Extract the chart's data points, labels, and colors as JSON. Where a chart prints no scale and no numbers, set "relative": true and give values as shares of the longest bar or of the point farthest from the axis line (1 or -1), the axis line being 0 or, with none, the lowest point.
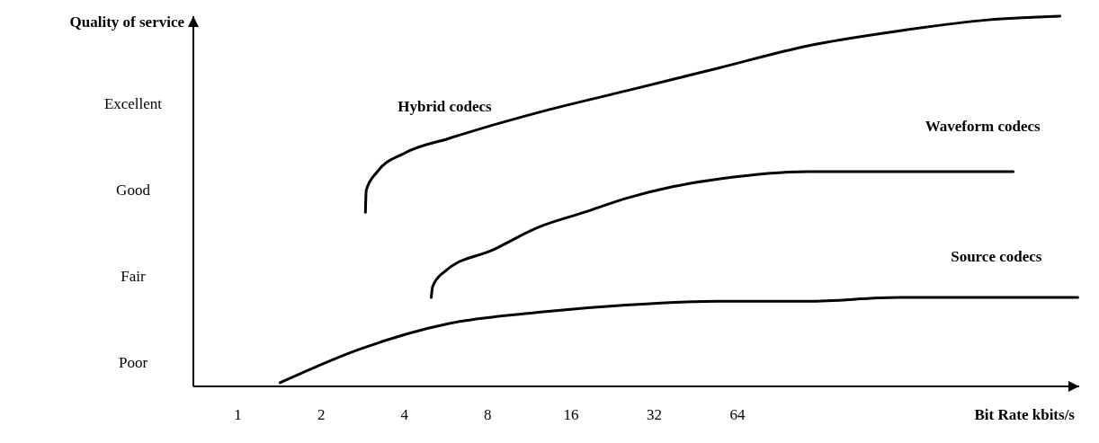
{
  "chart_data": {
    "type": "line",
    "xlabel": "Bit Rate kbits/s",
    "ylabel": "Quality of service",
    "log": "x",
    "relative": true,
    "xlim": [
      0.69,
      1100
    ],
    "xticks": [
      1,
      2,
      4,
      8,
      16,
      32,
      64
    ],
    "annotations": [
      "Poor",
      "Fair",
      "Good",
      "Excellent"
    ],
    "series": [
      {
        "name": "Hybrid codecs",
        "color": "#000000",
        "x": [
          2.89,
          2.91,
          3.19,
          4.0,
          5.8,
          12.2,
          25.9,
          54.6,
          115,
          244,
          515,
          937
        ],
        "values": [
          0.47,
          0.53,
          0.58,
          0.63,
          0.67,
          0.74,
          0.8,
          0.86,
          0.92,
          0.96,
          0.99,
          1
        ]
      },
      {
        "name": "Waveform codecs",
        "color": "#000000",
        "x": [
          5.0,
          5.06,
          5.58,
          8.42,
          12.2,
          17.8,
          25.9,
          37.6,
          54.6,
          115,
          244,
          635
        ],
        "values": [
          0.24,
          0.27,
          0.31,
          0.37,
          0.43,
          0.47,
          0.51,
          0.54,
          0.56,
          0.58,
          0.58,
          0.58
        ]
      },
      {
        "name": "Source codecs",
        "color": "#000000",
        "x": [
          1.42,
          2.74,
          5.8,
          12.2,
          25.9,
          54.6,
          115,
          244,
          515,
          1087
        ],
        "values": [
          0.01,
          0.1,
          0.17,
          0.2,
          0.22,
          0.23,
          0.23,
          0.24,
          0.24,
          0.24
        ]
      }
    ]
  }
}
